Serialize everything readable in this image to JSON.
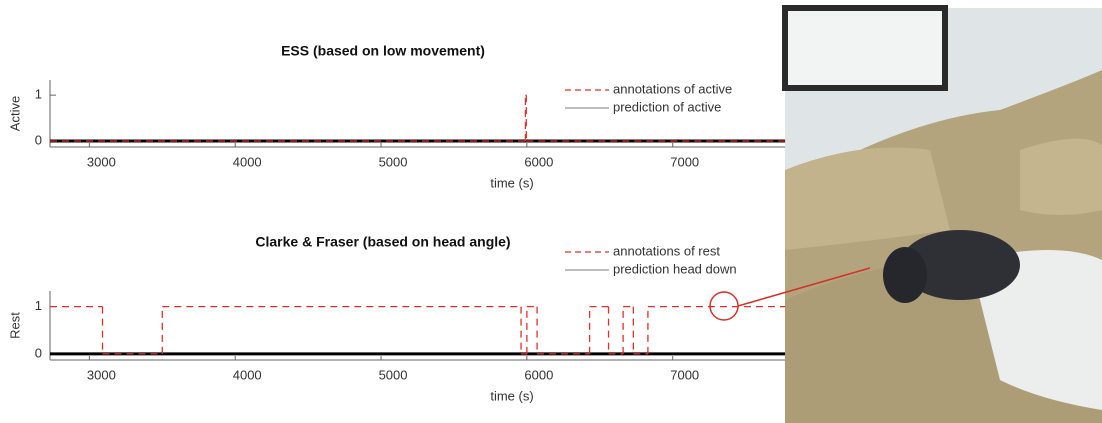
{
  "chart_data": [
    {
      "type": "line",
      "step": true,
      "title": "ESS (based on low movement)",
      "x_label": "time (s)",
      "y_label": "Active",
      "xlim": [
        2730,
        7770
      ],
      "ylim": [
        -0.13,
        1.33
      ],
      "xticks": [
        3000,
        4000,
        5000,
        6000,
        7000
      ],
      "yticks": [
        0,
        1
      ],
      "legend": "upper right",
      "series": [
        {
          "name": "annotations of active",
          "color": "#e0302a",
          "dashed": true,
          "x": [
            2730,
            5990,
            5996,
            7770
          ],
          "values": [
            0,
            1,
            0,
            0
          ]
        },
        {
          "name": "prediction of active",
          "color": "#000000",
          "dashed": false,
          "x": [
            2730,
            7770
          ],
          "values": [
            0,
            0
          ]
        }
      ]
    },
    {
      "type": "line",
      "step": true,
      "title": "Clarke & Fraser (based on head angle)",
      "x_label": "time (s)",
      "y_label": "Rest",
      "xlim": [
        2730,
        7770
      ],
      "ylim": [
        -0.13,
        1.33
      ],
      "xticks": [
        3000,
        4000,
        5000,
        6000,
        7000
      ],
      "yticks": [
        0,
        1
      ],
      "legend": "upper right",
      "series": [
        {
          "name": "annotations of rest",
          "color": "#e0302a",
          "dashed": true,
          "x": [
            2730,
            3090,
            3500,
            5960,
            6000,
            6070,
            6430,
            6560,
            6660,
            6730,
            6830,
            7770
          ],
          "values": [
            1,
            0,
            1,
            0,
            1,
            0,
            1,
            0,
            1,
            0,
            1,
            1
          ]
        },
        {
          "name": "prediction head down",
          "color": "#000000",
          "dashed": false,
          "x": [
            2730,
            7770
          ],
          "values": [
            0,
            0
          ]
        }
      ]
    }
  ]
}
